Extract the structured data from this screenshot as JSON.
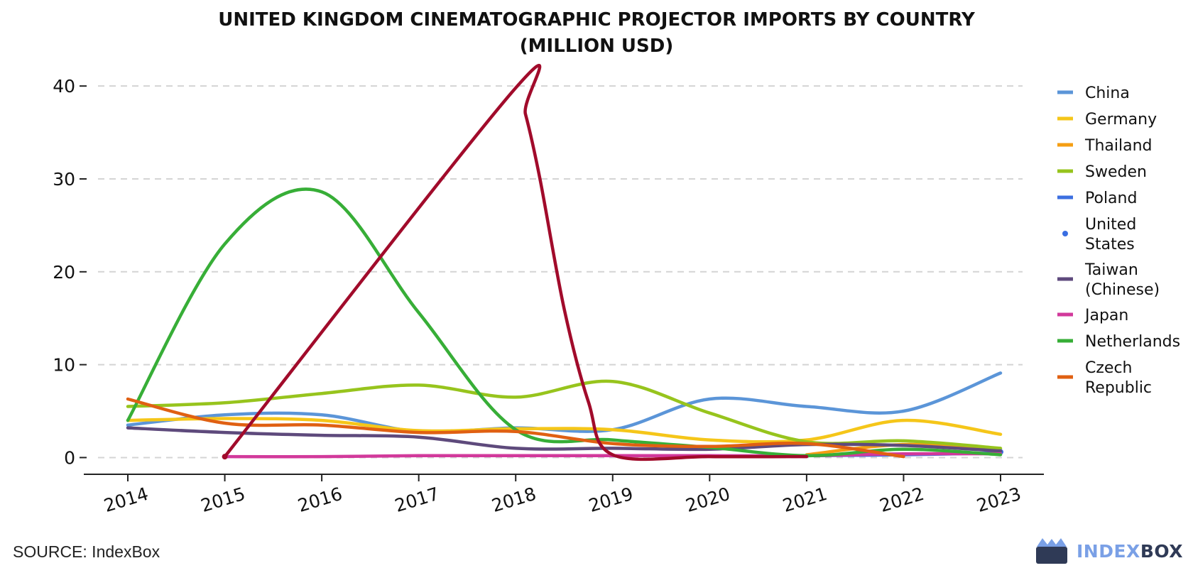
{
  "chart_data": {
    "type": "line",
    "title_lines": [
      "UNITED KINGDOM CINEMATOGRAPHIC PROJECTOR IMPORTS BY COUNTRY",
      "(MILLION USD)"
    ],
    "xlabel": "",
    "ylabel": "",
    "x": [
      2014,
      2015,
      2016,
      2017,
      2018,
      2019,
      2020,
      2021,
      2022,
      2023
    ],
    "x_tick_labels": [
      "2014",
      "2015",
      "2016",
      "2017",
      "2018",
      "2019",
      "2020",
      "2021",
      "2022",
      "2023"
    ],
    "y_ticks": [
      0,
      10,
      20,
      30,
      40
    ],
    "ylim": [
      -1.8,
      42
    ],
    "grid": "horizontal-dashed",
    "legend_position": "right",
    "series": [
      {
        "name": "China",
        "legend_lines": [
          "China"
        ],
        "color": "#5b95d8",
        "marker": "line",
        "x": [
          2014,
          2015,
          2016,
          2017,
          2018,
          2019,
          2020,
          2021,
          2022,
          2023
        ],
        "values": [
          3.5,
          4.6,
          4.6,
          2.8,
          3.2,
          3.0,
          6.3,
          5.5,
          5.0,
          9.1
        ]
      },
      {
        "name": "Germany",
        "legend_lines": [
          "Germany"
        ],
        "color": "#f5c619",
        "marker": "line",
        "x": [
          2014,
          2015,
          2016,
          2017,
          2018,
          2019,
          2020,
          2021,
          2022,
          2023
        ],
        "values": [
          4.0,
          4.2,
          4.0,
          2.9,
          3.1,
          3.0,
          1.9,
          1.9,
          4.0,
          2.5
        ]
      },
      {
        "name": "Thailand",
        "legend_lines": [
          "Thailand"
        ],
        "color": "#f59e13",
        "marker": "line",
        "x": [
          2021,
          2022,
          2023
        ],
        "values": [
          0.3,
          1.4,
          0.8
        ]
      },
      {
        "name": "Sweden",
        "legend_lines": [
          "Sweden"
        ],
        "color": "#97c41d",
        "marker": "line",
        "x": [
          2014,
          2015,
          2016,
          2017,
          2018,
          2019,
          2020,
          2021,
          2022,
          2023
        ],
        "values": [
          5.5,
          5.9,
          6.9,
          7.8,
          6.5,
          8.2,
          4.8,
          1.7,
          1.8,
          1.0
        ]
      },
      {
        "name": "Poland",
        "legend_lines": [
          "Poland"
        ],
        "color": "#3c6fe0",
        "marker": "line",
        "x": [
          2021,
          2022,
          2023
        ],
        "values": [
          0.2,
          0.3,
          0.5
        ]
      },
      {
        "name": "United States",
        "legend_lines": [
          "United",
          "States"
        ],
        "color": "#3a6ee2",
        "marker": "dot",
        "x": [
          2023
        ],
        "values": [
          0.6
        ]
      },
      {
        "name": "Taiwan (Chinese)",
        "legend_lines": [
          "Taiwan",
          "(Chinese)"
        ],
        "color": "#5e4a7c",
        "marker": "line",
        "x": [
          2014,
          2015,
          2016,
          2017,
          2018,
          2019,
          2020,
          2021,
          2022,
          2023
        ],
        "values": [
          3.2,
          2.7,
          2.4,
          2.2,
          1.0,
          1.0,
          0.9,
          1.4,
          1.3,
          0.7
        ]
      },
      {
        "name": "Japan",
        "legend_lines": [
          "Japan"
        ],
        "color": "#d2399b",
        "marker": "line",
        "x": [
          2015,
          2016,
          2017,
          2018,
          2019,
          2020,
          2021,
          2022,
          2023
        ],
        "values": [
          0.1,
          0.1,
          0.2,
          0.2,
          0.2,
          0.2,
          0.2,
          0.4,
          0.4
        ]
      },
      {
        "name": "Netherlands",
        "legend_lines": [
          "Netherlands"
        ],
        "color": "#37ae37",
        "marker": "line",
        "x": [
          2014,
          2015,
          2016,
          2017,
          2018,
          2019,
          2020,
          2021,
          2022,
          2023
        ],
        "values": [
          4.0,
          23.0,
          28.6,
          15.6,
          3.0,
          1.9,
          1.1,
          0.2,
          0.9,
          0.3
        ]
      },
      {
        "name": "Czech Republic",
        "legend_lines": [
          "Czech",
          "Republic"
        ],
        "color": "#e06012",
        "marker": "line",
        "x": [
          2014,
          2015,
          2016,
          2017,
          2018,
          2019,
          2020,
          2021,
          2022
        ],
        "values": [
          6.3,
          3.7,
          3.5,
          2.7,
          2.8,
          1.5,
          1.2,
          1.5,
          0.1
        ]
      },
      {
        "name": "",
        "legend_lines": [],
        "color": "#a10b2b",
        "marker": "line",
        "x": [
          2015,
          2018,
          2018.1,
          2018.25,
          2018.5,
          2018.75,
          2019,
          2020,
          2021
        ],
        "values": [
          0.1,
          39.8,
          37.0,
          30.0,
          16.0,
          6.0,
          0.3,
          0.1,
          0.1
        ]
      }
    ]
  },
  "footer": {
    "source": "SOURCE: IndexBox",
    "brand_light": "INDEX",
    "brand_dark": "BOX"
  }
}
